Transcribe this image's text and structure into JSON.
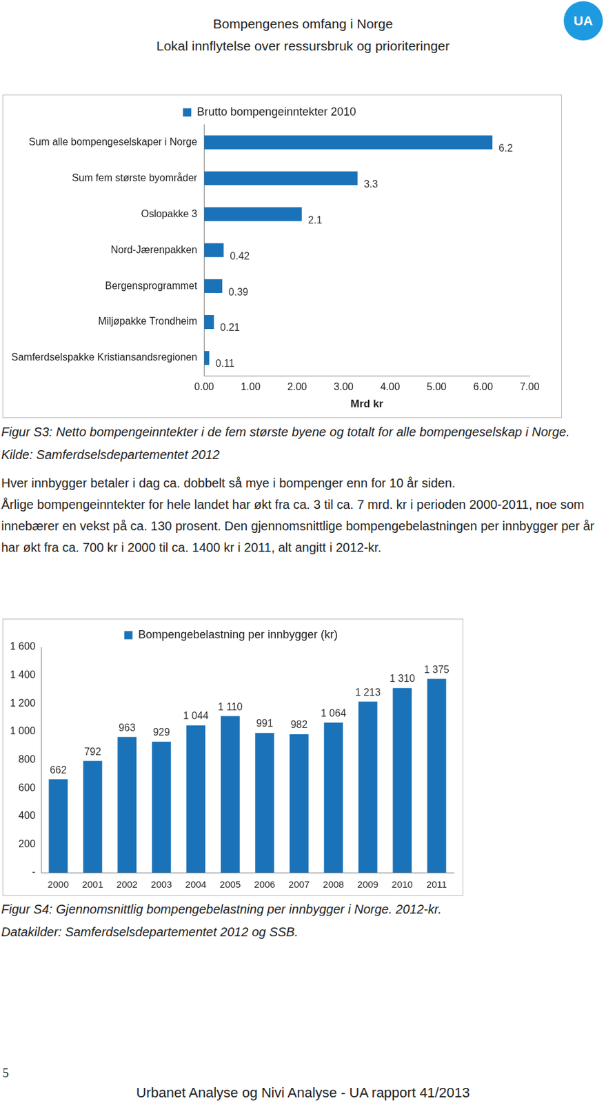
{
  "header": {
    "title": "Bompengenes omfang i Norge",
    "subtitle": "Lokal innflytelse over ressursbruk og prioriteringer"
  },
  "logo": "UA",
  "chart_data": [
    {
      "type": "bar",
      "orientation": "horizontal",
      "series": [
        {
          "name": "Brutto bompengeinntekter 2010",
          "color": "#1a72b8",
          "values": [
            6.2,
            3.3,
            2.1,
            0.42,
            0.39,
            0.21,
            0.11
          ]
        }
      ],
      "categories": [
        "Sum alle bompengeselskaper i Norge",
        "Sum fem største byområder",
        "Oslopakke 3",
        "Nord-Jærenpakken",
        "Bergensprogrammet",
        "Miljøpakke Trondheim",
        "Samferdselspakke Kristiansandsregionen"
      ],
      "x_label": "Mrd kr",
      "xlim": [
        0,
        7
      ],
      "xticks": [
        {
          "value": 0,
          "label": "0.00"
        },
        {
          "value": 1,
          "label": "1.00"
        },
        {
          "value": 2,
          "label": "2.00"
        },
        {
          "value": 3,
          "label": "3.00"
        },
        {
          "value": 4,
          "label": "4.00"
        },
        {
          "value": 5,
          "label": "5.00"
        },
        {
          "value": 6,
          "label": "6.00"
        },
        {
          "value": 7,
          "label": "7.00"
        }
      ],
      "grid": false,
      "legend": "top",
      "data_labels": true
    },
    {
      "type": "bar",
      "series": [
        {
          "name": "Bompengebelastning per innbygger (kr)",
          "color": "#1a72b8",
          "values": [
            662,
            792,
            963,
            929,
            1044,
            1110,
            991,
            982,
            1064,
            1213,
            1310,
            1375
          ],
          "value_labels": [
            "662",
            "792",
            "963",
            "929",
            "1 044",
            "1 110",
            "991",
            "982",
            "1 064",
            "1 213",
            "1 310",
            "1 375"
          ]
        }
      ],
      "categories": [
        "2000",
        "2001",
        "2002",
        "2003",
        "2004",
        "2005",
        "2006",
        "2007",
        "2008",
        "2009",
        "2010",
        "2011"
      ],
      "ylim": [
        0,
        1600
      ],
      "yticks": [
        {
          "value": 0,
          "label": "-"
        },
        200,
        400,
        600,
        800,
        {
          "value": 1000,
          "label": "1 000"
        },
        {
          "value": 1200,
          "label": "1 200"
        },
        {
          "value": 1400,
          "label": "1 400"
        },
        {
          "value": 1600,
          "label": "1 600"
        }
      ],
      "grid": false,
      "legend": "top",
      "data_labels": true
    }
  ],
  "captions": [
    "Figur S3: Netto bompengeinntekter i de fem største byene og totalt for alle bompengeselskap i Norge. Kilde: Samferdselsdepartementet 2012",
    "Figur S4: Gjennomsnittlig bompengebelastning per innbygger i Norge. 2012-kr. Datakilder: Samferdselsdepartementet 2012 og SSB."
  ],
  "paragraphs": [
    "Hver innbygger betaler i dag ca. dobbelt så mye i bompenger enn for 10 år siden.",
    "Årlige bompengeinntekter for hele landet har økt fra ca. 3 til ca. 7 mrd. kr i perioden 2000-2011, noe som innebærer en vekst på ca. 130 prosent. Den gjennomsnittlige bompengebelastningen per innbygger per år har økt fra ca. 700 kr i 2000 til ca. 1400 kr i 2011, alt angitt i 2012-kr."
  ],
  "page_number": "5",
  "footer": "Urbanet Analyse og Nivi Analyse - UA rapport 41/2013"
}
